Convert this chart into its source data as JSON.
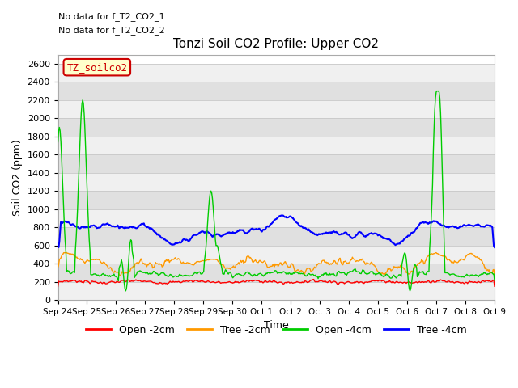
{
  "title": "Tonzi Soil CO2 Profile: Upper CO2",
  "xlabel": "Time",
  "ylabel": "Soil CO2 (ppm)",
  "annotations": [
    "No data for f_T2_CO2_1",
    "No data for f_T2_CO2_2"
  ],
  "legend_label": "TZ_soilco2",
  "legend_entries": [
    "Open -2cm",
    "Tree -2cm",
    "Open -4cm",
    "Tree -4cm"
  ],
  "legend_colors": [
    "#ff0000",
    "#ff9900",
    "#00cc00",
    "#0000ff"
  ],
  "ylim": [
    0,
    2700
  ],
  "yticks": [
    0,
    200,
    400,
    600,
    800,
    1000,
    1200,
    1400,
    1600,
    1800,
    2000,
    2200,
    2400,
    2600
  ],
  "date_labels": [
    "Sep 24",
    "Sep 25",
    "Sep 26",
    "Sep 27",
    "Sep 28",
    "Sep 29",
    "Sep 30",
    "Oct 1",
    "Oct 2",
    "Oct 3",
    "Oct 4",
    "Oct 5",
    "Oct 6",
    "Oct 7",
    "Oct 8",
    "Oct 9"
  ],
  "n_points": 600,
  "background_color": "#ffffff",
  "band_color_light": "#f0f0f0",
  "band_color_dark": "#e0e0e0",
  "open2cm_base": 200,
  "tree2cm_base": 380,
  "open4cm_base": 290,
  "tree4cm_base": 760
}
